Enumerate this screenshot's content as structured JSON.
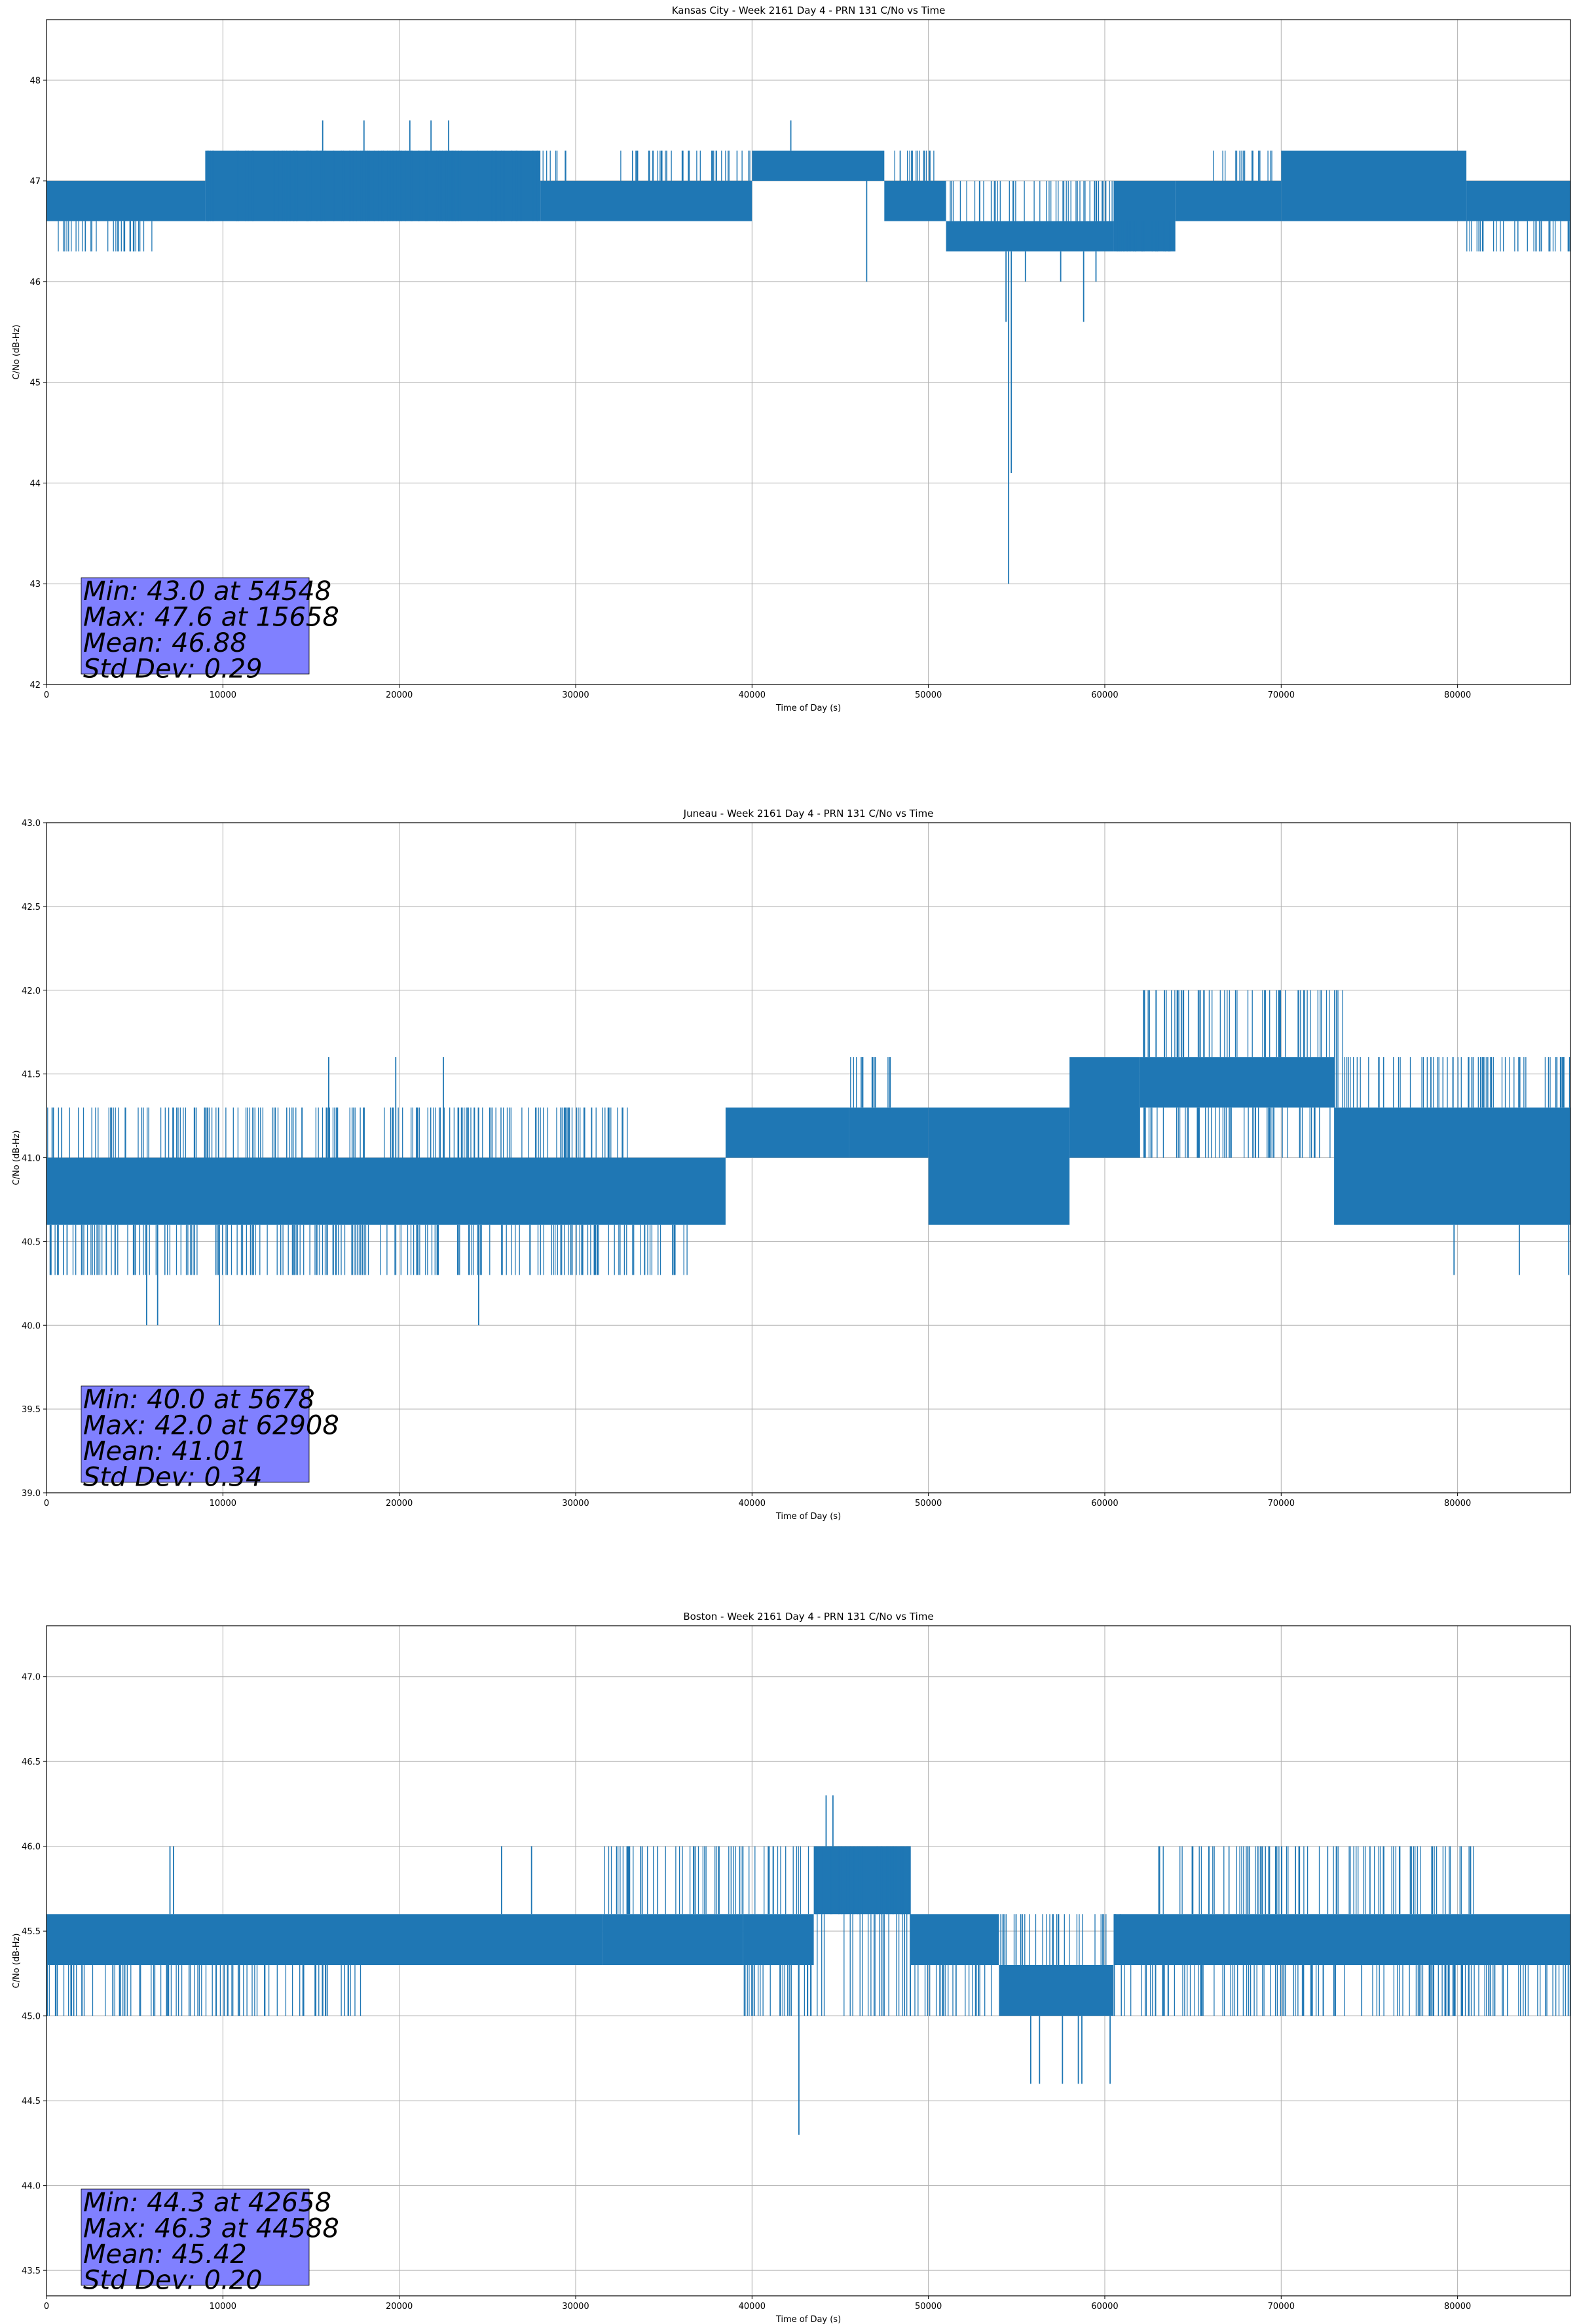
{
  "colors": {
    "series": "#1f77b4",
    "grid": "#b0b0b0",
    "stats_box": "#8080ff"
  },
  "chart_data": [
    {
      "type": "line",
      "title": "Kansas City - Week 2161 Day 4 - PRN 131 C/No vs Time",
      "xlabel": "Time of Day (s)",
      "ylabel": "C/No (dB-Hz)",
      "xlim": [
        0,
        86400
      ],
      "ylim": [
        42,
        48.6
      ],
      "xticks": [
        0,
        10000,
        20000,
        30000,
        40000,
        50000,
        60000,
        70000,
        80000
      ],
      "yticks": [
        42,
        43,
        44,
        45,
        46,
        47,
        48
      ],
      "ytick_decimals": 0,
      "grid": true,
      "stats_lines": [
        "Min: 43.0 at 54548",
        "Max: 47.6 at 15658",
        "Mean: 46.88",
        "Std Dev: 0.29"
      ],
      "segments": [
        {
          "x0": 0,
          "x1": 9000,
          "lo": 46.6,
          "hi": 47.0
        },
        {
          "x0": 9000,
          "x1": 28000,
          "lo": 46.6,
          "hi": 47.3
        },
        {
          "x0": 28000,
          "x1": 40000,
          "lo": 46.6,
          "hi": 47.0
        },
        {
          "x0": 40000,
          "x1": 47500,
          "lo": 47.0,
          "hi": 47.3
        },
        {
          "x0": 47500,
          "x1": 51000,
          "lo": 46.6,
          "hi": 47.0
        },
        {
          "x0": 51000,
          "x1": 60500,
          "lo": 46.3,
          "hi": 46.6
        },
        {
          "x0": 60500,
          "x1": 64000,
          "lo": 46.3,
          "hi": 47.0
        },
        {
          "x0": 64000,
          "x1": 70000,
          "lo": 46.6,
          "hi": 47.0
        },
        {
          "x0": 70000,
          "x1": 80500,
          "lo": 46.6,
          "hi": 47.3
        },
        {
          "x0": 80500,
          "x1": 86400,
          "lo": 46.6,
          "hi": 47.0
        }
      ],
      "excursions": [
        {
          "x0": 0,
          "x1": 6000,
          "value": 46.3
        },
        {
          "x0": 9000,
          "x1": 29500,
          "value": 47.3
        },
        {
          "x0": 32500,
          "x1": 40000,
          "value": 47.3
        },
        {
          "x0": 48000,
          "x1": 51000,
          "value": 47.3
        },
        {
          "x0": 51000,
          "x1": 60500,
          "value": 47.0
        },
        {
          "x0": 60500,
          "x1": 65500,
          "value": 46.6
        },
        {
          "x0": 66000,
          "x1": 69500,
          "value": 47.3
        },
        {
          "x0": 80500,
          "x1": 86400,
          "value": 46.3
        }
      ],
      "spikes": [
        {
          "x": 15658,
          "value": 47.6
        },
        {
          "x": 18000,
          "value": 47.6
        },
        {
          "x": 20600,
          "value": 47.6
        },
        {
          "x": 21800,
          "value": 47.6
        },
        {
          "x": 22800,
          "value": 47.6
        },
        {
          "x": 42200,
          "value": 47.6
        },
        {
          "x": 46500,
          "value": 46.0
        },
        {
          "x": 54548,
          "value": 43.0
        },
        {
          "x": 54700,
          "value": 44.1
        },
        {
          "x": 54400,
          "value": 45.6
        },
        {
          "x": 55500,
          "value": 46.0
        },
        {
          "x": 57500,
          "value": 46.0
        },
        {
          "x": 58800,
          "value": 45.6
        },
        {
          "x": 59500,
          "value": 46.0
        }
      ]
    },
    {
      "type": "line",
      "title": "Juneau - Week 2161 Day 4 - PRN 131 C/No vs Time",
      "xlabel": "Time of Day (s)",
      "ylabel": "C/No (dB-Hz)",
      "xlim": [
        0,
        86400
      ],
      "ylim": [
        39.0,
        43.0
      ],
      "xticks": [
        0,
        10000,
        20000,
        30000,
        40000,
        50000,
        60000,
        70000,
        80000
      ],
      "yticks": [
        39.0,
        39.5,
        40.0,
        40.5,
        41.0,
        41.5,
        42.0,
        42.5,
        43.0
      ],
      "ytick_decimals": 1,
      "grid": true,
      "stats_lines": [
        "Min: 40.0 at 5678",
        "Max: 42.0 at 62908",
        "Mean: 41.01",
        "Std Dev: 0.34"
      ],
      "segments": [
        {
          "x0": 0,
          "x1": 38500,
          "lo": 40.6,
          "hi": 41.0
        },
        {
          "x0": 38500,
          "x1": 45500,
          "lo": 41.0,
          "hi": 41.3
        },
        {
          "x0": 45500,
          "x1": 50000,
          "lo": 41.0,
          "hi": 41.3
        },
        {
          "x0": 50000,
          "x1": 58000,
          "lo": 40.6,
          "hi": 41.3
        },
        {
          "x0": 58000,
          "x1": 62000,
          "lo": 41.0,
          "hi": 41.6
        },
        {
          "x0": 62000,
          "x1": 73000,
          "lo": 41.3,
          "hi": 41.6
        },
        {
          "x0": 73000,
          "x1": 86400,
          "lo": 40.6,
          "hi": 41.3
        }
      ],
      "excursions": [
        {
          "x0": 0,
          "x1": 37000,
          "value": 40.3
        },
        {
          "x0": 0,
          "x1": 33000,
          "value": 41.3
        },
        {
          "x0": 45500,
          "x1": 48000,
          "value": 41.6
        },
        {
          "x0": 58000,
          "x1": 73500,
          "value": 41.0
        },
        {
          "x0": 62000,
          "x1": 74000,
          "value": 42.0
        },
        {
          "x0": 73000,
          "x1": 86400,
          "value": 41.6
        }
      ],
      "spikes": [
        {
          "x": 5678,
          "value": 40.0
        },
        {
          "x": 6300,
          "value": 40.0
        },
        {
          "x": 9800,
          "value": 40.0
        },
        {
          "x": 24500,
          "value": 40.0
        },
        {
          "x": 16000,
          "value": 41.6
        },
        {
          "x": 19800,
          "value": 41.6
        },
        {
          "x": 22500,
          "value": 41.6
        },
        {
          "x": 62908,
          "value": 42.0
        },
        {
          "x": 79800,
          "value": 40.3
        },
        {
          "x": 83500,
          "value": 40.3
        },
        {
          "x": 86300,
          "value": 40.3
        }
      ]
    },
    {
      "type": "line",
      "title": "Boston - Week 2161 Day 4 - PRN 131 C/No vs Time",
      "xlabel": "Time of Day (s)",
      "ylabel": "C/No (dB-Hz)",
      "xlim": [
        0,
        86400
      ],
      "ylim": [
        43.35,
        47.3
      ],
      "xticks": [
        0,
        10000,
        20000,
        30000,
        40000,
        50000,
        60000,
        70000,
        80000
      ],
      "yticks": [
        43.5,
        44.0,
        44.5,
        45.0,
        45.5,
        46.0,
        46.5,
        47.0
      ],
      "ytick_decimals": 1,
      "grid": true,
      "stats_lines": [
        "Min: 44.3 at 42658",
        "Max: 46.3 at 44588",
        "Mean: 45.42",
        "Std Dev: 0.20"
      ],
      "segments": [
        {
          "x0": 0,
          "x1": 31500,
          "lo": 45.3,
          "hi": 45.6
        },
        {
          "x0": 31500,
          "x1": 39500,
          "lo": 45.3,
          "hi": 45.6
        },
        {
          "x0": 39500,
          "x1": 43500,
          "lo": 45.3,
          "hi": 45.6
        },
        {
          "x0": 43500,
          "x1": 49000,
          "lo": 45.6,
          "hi": 46.0
        },
        {
          "x0": 49000,
          "x1": 54000,
          "lo": 45.3,
          "hi": 45.6
        },
        {
          "x0": 54000,
          "x1": 60500,
          "lo": 45.0,
          "hi": 45.3
        },
        {
          "x0": 60500,
          "x1": 86400,
          "lo": 45.3,
          "hi": 45.6
        }
      ],
      "excursions": [
        {
          "x0": 0,
          "x1": 18500,
          "value": 45.0
        },
        {
          "x0": 31500,
          "x1": 49500,
          "value": 46.0
        },
        {
          "x0": 39500,
          "x1": 54000,
          "value": 45.0
        },
        {
          "x0": 54000,
          "x1": 61000,
          "value": 45.6
        },
        {
          "x0": 60500,
          "x1": 86400,
          "value": 45.0
        },
        {
          "x0": 63000,
          "x1": 81000,
          "value": 46.0
        }
      ],
      "spikes": [
        {
          "x": 7000,
          "value": 46.0
        },
        {
          "x": 7200,
          "value": 46.0
        },
        {
          "x": 25800,
          "value": 46.0
        },
        {
          "x": 27500,
          "value": 46.0
        },
        {
          "x": 42658,
          "value": 44.3
        },
        {
          "x": 44200,
          "value": 46.3
        },
        {
          "x": 44588,
          "value": 46.3
        },
        {
          "x": 55800,
          "value": 44.6
        },
        {
          "x": 56300,
          "value": 44.6
        },
        {
          "x": 57600,
          "value": 44.6
        },
        {
          "x": 58500,
          "value": 44.6
        },
        {
          "x": 58700,
          "value": 44.6
        },
        {
          "x": 60300,
          "value": 44.6
        }
      ]
    }
  ]
}
